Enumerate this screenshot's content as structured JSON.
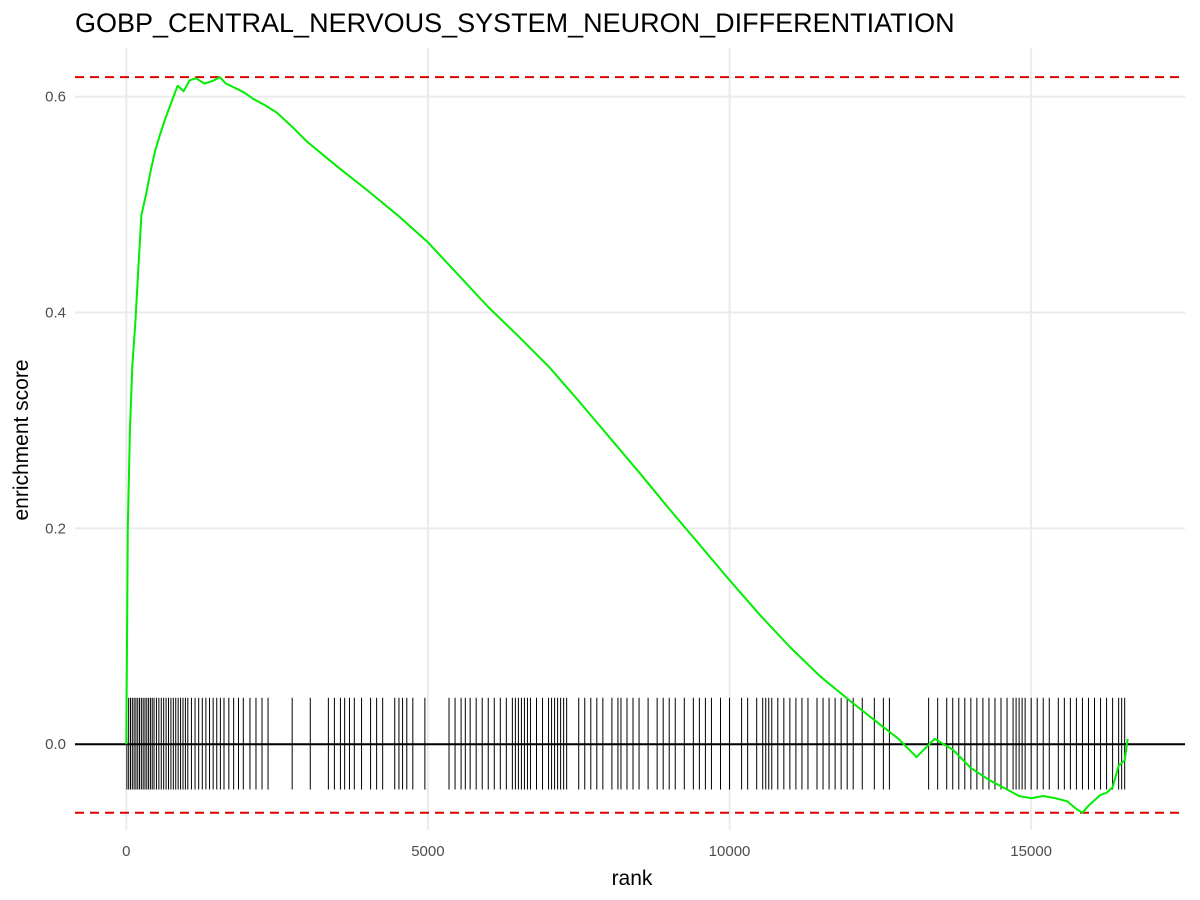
{
  "chart_data": {
    "type": "line",
    "title": "GOBP_CENTRAL_NERVOUS_SYSTEM_NEURON_DIFFERENTIATION",
    "xlabel": "rank",
    "ylabel": "enrichment score",
    "xlim": [
      -850,
      17550
    ],
    "ylim": [
      -0.0795,
      0.645
    ],
    "x_ticks": [
      0,
      5000,
      10000,
      15000
    ],
    "x_tick_labels": [
      "0",
      "5000",
      "10000",
      "15000"
    ],
    "y_ticks": [
      0.0,
      0.2,
      0.4,
      0.6
    ],
    "y_tick_labels": [
      "0.0",
      "0.2",
      "0.4",
      "0.6"
    ],
    "grid": true,
    "zero_line": 0,
    "threshold_lines": [
      0.618,
      -0.0635
    ],
    "colors": {
      "curve": "#00ee00",
      "threshold": "#dd0000",
      "hits": "#000000",
      "zero_line": "#000000",
      "grid": "#ebebeb"
    },
    "hit_band": [
      -0.042,
      0.043
    ],
    "series": [
      {
        "values": [
          [
            0,
            0.0
          ],
          [
            25,
            0.2
          ],
          [
            60,
            0.29
          ],
          [
            100,
            0.35
          ],
          [
            150,
            0.39
          ],
          [
            200,
            0.44
          ],
          [
            250,
            0.49
          ],
          [
            330,
            0.51
          ],
          [
            400,
            0.53
          ],
          [
            480,
            0.55
          ],
          [
            560,
            0.565
          ],
          [
            650,
            0.58
          ],
          [
            750,
            0.595
          ],
          [
            850,
            0.61
          ],
          [
            950,
            0.605
          ],
          [
            1050,
            0.615
          ],
          [
            1150,
            0.617
          ],
          [
            1300,
            0.612
          ],
          [
            1450,
            0.615
          ],
          [
            1550,
            0.618
          ],
          [
            1650,
            0.612
          ],
          [
            1800,
            0.608
          ],
          [
            1950,
            0.604
          ],
          [
            2100,
            0.598
          ],
          [
            2300,
            0.592
          ],
          [
            2500,
            0.585
          ],
          [
            2750,
            0.572
          ],
          [
            3000,
            0.558
          ],
          [
            3500,
            0.535
          ],
          [
            4000,
            0.513
          ],
          [
            4500,
            0.49
          ],
          [
            5000,
            0.465
          ],
          [
            5500,
            0.435
          ],
          [
            6000,
            0.405
          ],
          [
            6500,
            0.378
          ],
          [
            7000,
            0.35
          ],
          [
            7500,
            0.318
          ],
          [
            8000,
            0.285
          ],
          [
            8500,
            0.252
          ],
          [
            9000,
            0.218
          ],
          [
            9500,
            0.185
          ],
          [
            10000,
            0.152
          ],
          [
            10500,
            0.12
          ],
          [
            11000,
            0.09
          ],
          [
            11500,
            0.063
          ],
          [
            12000,
            0.04
          ],
          [
            12500,
            0.018
          ],
          [
            12800,
            0.005
          ],
          [
            13100,
            -0.012
          ],
          [
            13400,
            0.005
          ],
          [
            13700,
            -0.005
          ],
          [
            14000,
            -0.022
          ],
          [
            14300,
            -0.033
          ],
          [
            14600,
            -0.042
          ],
          [
            14800,
            -0.048
          ],
          [
            15000,
            -0.05
          ],
          [
            15200,
            -0.048
          ],
          [
            15400,
            -0.05
          ],
          [
            15600,
            -0.053
          ],
          [
            15750,
            -0.06
          ],
          [
            15850,
            -0.0635
          ],
          [
            15950,
            -0.057
          ],
          [
            16050,
            -0.052
          ],
          [
            16150,
            -0.047
          ],
          [
            16250,
            -0.045
          ],
          [
            16350,
            -0.04
          ],
          [
            16450,
            -0.02
          ],
          [
            16550,
            -0.015
          ],
          [
            16600,
            0.005
          ]
        ]
      }
    ],
    "hit_positions": [
      10,
      40,
      70,
      100,
      130,
      160,
      190,
      220,
      250,
      280,
      310,
      340,
      370,
      400,
      430,
      460,
      500,
      540,
      580,
      620,
      660,
      700,
      740,
      780,
      820,
      860,
      900,
      940,
      980,
      1020,
      1080,
      1140,
      1200,
      1260,
      1320,
      1380,
      1440,
      1500,
      1560,
      1620,
      1700,
      1780,
      1860,
      1940,
      2050,
      2150,
      2250,
      2350,
      2750,
      3050,
      3350,
      3450,
      3550,
      3620,
      3700,
      3780,
      3900,
      4050,
      4150,
      4250,
      4450,
      4520,
      4580,
      4650,
      4750,
      4950,
      5350,
      5450,
      5550,
      5620,
      5700,
      5800,
      5900,
      6000,
      6100,
      6200,
      6300,
      6400,
      6450,
      6500,
      6550,
      6600,
      6650,
      6700,
      6800,
      6900,
      7000,
      7050,
      7100,
      7150,
      7200,
      7250,
      7300,
      7500,
      7600,
      7700,
      7800,
      7900,
      8050,
      8150,
      8200,
      8300,
      8400,
      8500,
      8650,
      8800,
      8900,
      9000,
      9100,
      9250,
      9400,
      9500,
      9600,
      9700,
      9850,
      10000,
      10200,
      10300,
      10450,
      10550,
      10600,
      10650,
      10700,
      10800,
      10900,
      11000,
      11100,
      11200,
      11300,
      11450,
      11550,
      11650,
      11750,
      11850,
      11950,
      12050,
      12200,
      12400,
      12550,
      12650,
      13300,
      13450,
      13600,
      13700,
      13800,
      13900,
      14000,
      14100,
      14200,
      14300,
      14400,
      14500,
      14600,
      14700,
      14750,
      14800,
      14850,
      14900,
      15000,
      15100,
      15200,
      15300,
      15450,
      15550,
      15650,
      15750,
      15850,
      15950,
      16050,
      16150,
      16250,
      16350,
      16450,
      16500,
      16550
    ]
  }
}
